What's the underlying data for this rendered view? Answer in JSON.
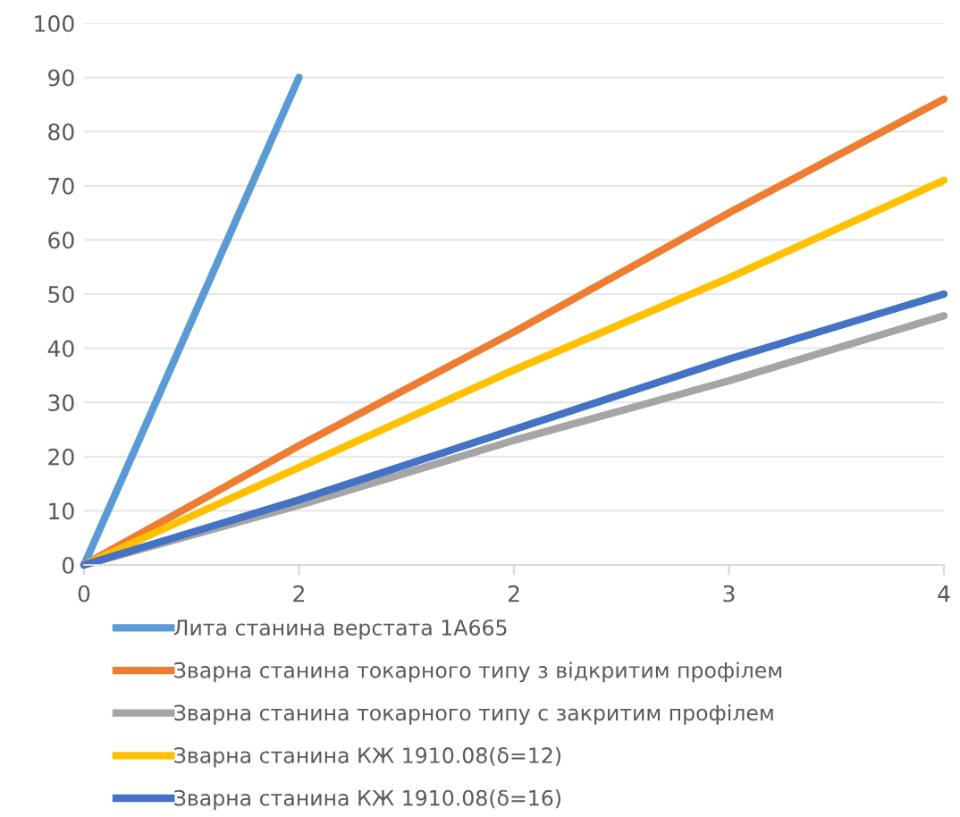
{
  "chart_data": {
    "type": "line",
    "categories": [
      "0",
      "2",
      "2",
      "3",
      "4"
    ],
    "series": [
      {
        "name": "Лита станина верстата 1А665",
        "color": "#5b9bd5",
        "values": [
          0,
          90,
          null,
          null,
          null
        ]
      },
      {
        "name": "Зварна станина токарного типу з відкритим профілем",
        "color": "#ed7d31",
        "values": [
          0,
          22,
          43,
          65,
          86
        ]
      },
      {
        "name": "Зварна станина токарного типу с закритим профілем",
        "color": "#a5a5a5",
        "values": [
          0,
          11,
          23,
          34,
          46
        ]
      },
      {
        "name": "Зварна станина КЖ 1910.08(δ=12)",
        "color": "#ffc000",
        "values": [
          0,
          18,
          36,
          53,
          71
        ]
      },
      {
        "name": "Зварна станина КЖ 1910.08(δ=16)",
        "color": "#4472c4",
        "values": [
          0,
          12,
          25,
          38,
          50
        ]
      }
    ],
    "ylim": [
      0,
      100
    ],
    "yticks": [
      0,
      10,
      20,
      30,
      40,
      50,
      60,
      70,
      80,
      90,
      100
    ],
    "grid": "y",
    "legend": "bottom",
    "marker": "none",
    "line_style": "solid"
  }
}
